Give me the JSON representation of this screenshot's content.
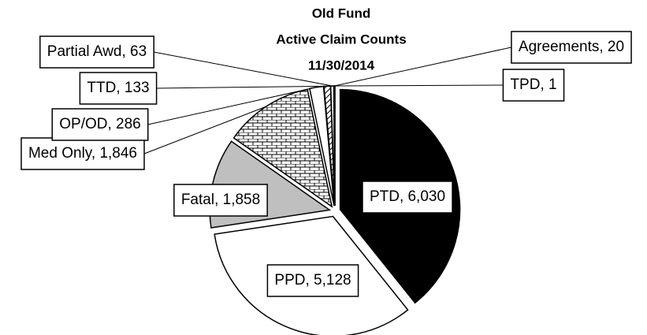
{
  "chart_data": {
    "type": "pie",
    "title": [
      "Old Fund",
      "Active Claim Counts",
      "11/30/2014"
    ],
    "categories": [
      "PTD",
      "PPD",
      "Fatal",
      "Med Only",
      "OP/OD",
      "TTD",
      "Partial Awd",
      "Agreements",
      "TPD"
    ],
    "values": [
      6030,
      5128,
      1858,
      1846,
      286,
      133,
      63,
      20,
      1
    ],
    "value_labels": [
      "PTD, 6,030",
      "PPD, 5,128",
      "Fatal, 1,858",
      "Med Only, 1,846",
      "OP/OD, 286",
      "TTD, 133",
      "Partial Awd, 63",
      "Agreements, 20",
      "TPD, 1"
    ],
    "colors": [
      "#000000",
      "#ffffff",
      "#bfbfbf",
      "url(#brick)",
      "#ffffff",
      "url(#hatch)",
      "#ffffff",
      "url(#dots)",
      "#000000"
    ]
  }
}
